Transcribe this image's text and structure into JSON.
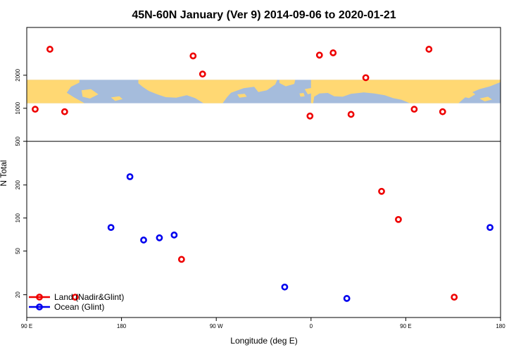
{
  "chart_data": {
    "type": "scatter",
    "title": "45N-60N January (Ver 9)   2014-09-06 to 2020-01-21",
    "xlabel": "Longitude (deg E)",
    "ylabel": "N Total",
    "y_scale": "log",
    "xlim": [
      90,
      540
    ],
    "ylim": [
      12.4,
      5450
    ],
    "grid": false,
    "legend_position": "bottom-left",
    "map_band": {
      "ocean_color": "#a5bcdc",
      "land_color": "#ffd873",
      "y_range": [
        1110,
        1820
      ]
    },
    "x_ticks": [
      {
        "value": 90,
        "label": "90 E"
      },
      {
        "value": 180,
        "label": "180"
      },
      {
        "value": 270,
        "label": "90 W"
      },
      {
        "value": 360,
        "label": "0"
      },
      {
        "value": 450,
        "label": "90 E"
      },
      {
        "value": 540,
        "label": "180"
      }
    ],
    "y_ticks": [
      {
        "value": 20,
        "label": "20"
      },
      {
        "value": 50,
        "label": "50"
      },
      {
        "value": 100,
        "label": "100"
      },
      {
        "value": 200,
        "label": "200"
      },
      {
        "value": 500,
        "label": "500"
      },
      {
        "value": 1000,
        "label": "1000"
      },
      {
        "value": 2000,
        "label": "2000"
      }
    ],
    "series": [
      {
        "name": "Land (Nadir&Glint)",
        "color": "#ee0000",
        "points": [
          {
            "x": 98,
            "y": 980
          },
          {
            "x": 112,
            "y": 3450
          },
          {
            "x": 126,
            "y": 930
          },
          {
            "x": 136,
            "y": 19
          },
          {
            "x": 237,
            "y": 42
          },
          {
            "x": 248,
            "y": 3000
          },
          {
            "x": 257,
            "y": 2050
          },
          {
            "x": 359,
            "y": 850
          },
          {
            "x": 368,
            "y": 3050
          },
          {
            "x": 381,
            "y": 3200
          },
          {
            "x": 398,
            "y": 880
          },
          {
            "x": 412,
            "y": 1900
          },
          {
            "x": 427,
            "y": 175
          },
          {
            "x": 443,
            "y": 97
          },
          {
            "x": 458,
            "y": 980
          },
          {
            "x": 472,
            "y": 3450
          },
          {
            "x": 485,
            "y": 930
          },
          {
            "x": 496,
            "y": 19
          }
        ]
      },
      {
        "name": "Ocean (Glint)",
        "color": "#0000ee",
        "points": [
          {
            "x": 170,
            "y": 82
          },
          {
            "x": 188,
            "y": 238
          },
          {
            "x": 201,
            "y": 63
          },
          {
            "x": 216,
            "y": 66
          },
          {
            "x": 230,
            "y": 70
          },
          {
            "x": 335,
            "y": 23.5
          },
          {
            "x": 394,
            "y": 18.5
          },
          {
            "x": 530,
            "y": 82
          }
        ]
      }
    ]
  }
}
